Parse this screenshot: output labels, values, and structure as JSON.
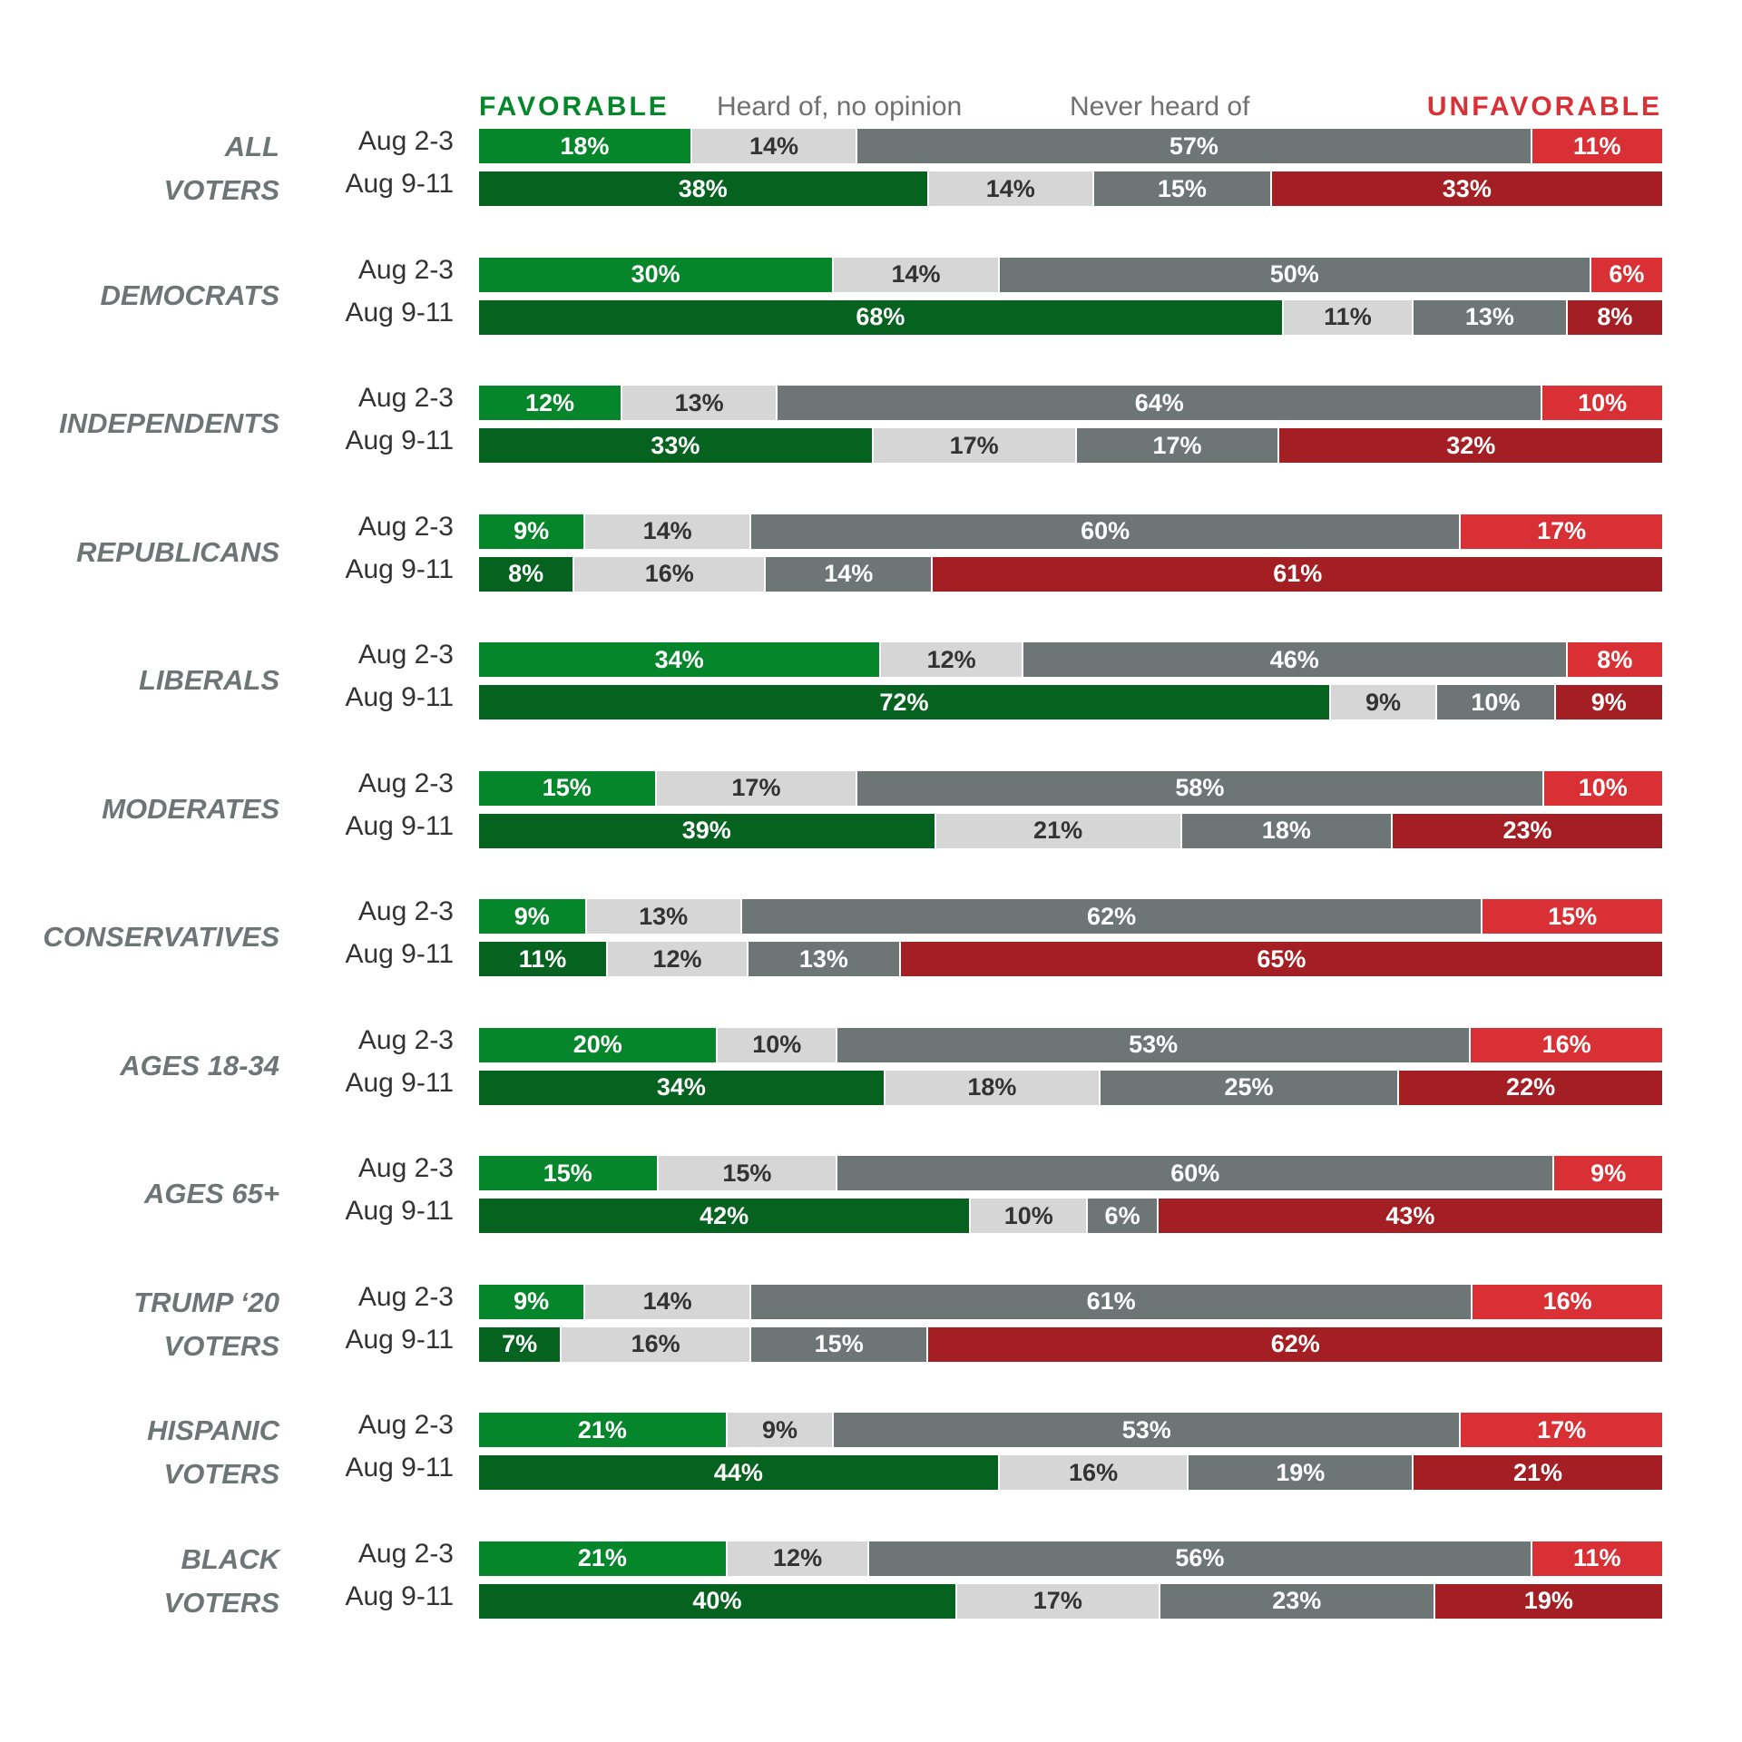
{
  "chart_data": {
    "type": "bar",
    "orientation": "horizontal",
    "stacked": true,
    "xlim": [
      0,
      100
    ],
    "legend_placement": "top",
    "series": [
      {
        "name": "FAVORABLE",
        "key": "favorable"
      },
      {
        "name": "Heard of, no opinion",
        "key": "no_opinion"
      },
      {
        "name": "Never heard of",
        "key": "never_heard"
      },
      {
        "name": "UNFAVORABLE",
        "key": "unfavorable"
      }
    ],
    "colors": {
      "favorable_1": "#06862a",
      "favorable_2": "#05631f",
      "no_opinion": "#d6d6d6",
      "never_heard": "#6e7575",
      "unfavorable_1": "#d93036",
      "unfavorable_2": "#a31f24",
      "legend_favorable": "#06862a",
      "legend_unfavorable": "#d93036",
      "legend_muted": "#707070"
    },
    "groups": [
      {
        "label": "ALL\nVOTERS",
        "rows": [
          {
            "date": "Aug 2-3",
            "values": [
              18,
              14,
              57,
              11
            ],
            "labels": [
              "18%",
              "14%",
              "57%",
              "11%"
            ]
          },
          {
            "date": "Aug 9-11",
            "values": [
              38,
              14,
              15,
              33
            ],
            "labels": [
              "38%",
              "14%",
              "15%",
              "33%"
            ]
          }
        ]
      },
      {
        "label": "DEMOCRATS",
        "rows": [
          {
            "date": "Aug 2-3",
            "values": [
              30,
              14,
              50,
              6
            ],
            "labels": [
              "30%",
              "14%",
              "50%",
              "6%"
            ]
          },
          {
            "date": "Aug 9-11",
            "values": [
              68,
              11,
              13,
              8
            ],
            "labels": [
              "68%",
              "11%",
              "13%",
              "8%"
            ]
          }
        ]
      },
      {
        "label": "INDEPENDENTS",
        "rows": [
          {
            "date": "Aug 2-3",
            "values": [
              12,
              13,
              64,
              10
            ],
            "labels": [
              "12%",
              "13%",
              "64%",
              "10%"
            ]
          },
          {
            "date": "Aug 9-11",
            "values": [
              33,
              17,
              17,
              32
            ],
            "labels": [
              "33%",
              "17%",
              "17%",
              "32%"
            ]
          }
        ]
      },
      {
        "label": "REPUBLICANS",
        "rows": [
          {
            "date": "Aug 2-3",
            "values": [
              9,
              14,
              60,
              17
            ],
            "labels": [
              "9%",
              "14%",
              "60%",
              "17%"
            ]
          },
          {
            "date": "Aug 9-11",
            "values": [
              8,
              16,
              14,
              61
            ],
            "labels": [
              "8%",
              "16%",
              "14%",
              "61%"
            ]
          }
        ]
      },
      {
        "label": "LIBERALS",
        "rows": [
          {
            "date": "Aug 2-3",
            "values": [
              34,
              12,
              46,
              8
            ],
            "labels": [
              "34%",
              "12%",
              "46%",
              "8%"
            ]
          },
          {
            "date": "Aug 9-11",
            "values": [
              72,
              9,
              10,
              9
            ],
            "labels": [
              "72%",
              "9%",
              "10%",
              "9%"
            ]
          }
        ]
      },
      {
        "label": "MODERATES",
        "rows": [
          {
            "date": "Aug 2-3",
            "values": [
              15,
              17,
              58,
              10
            ],
            "labels": [
              "15%",
              "17%",
              "58%",
              "10%"
            ]
          },
          {
            "date": "Aug 9-11",
            "values": [
              39,
              21,
              18,
              23
            ],
            "labels": [
              "39%",
              "21%",
              "18%",
              "23%"
            ]
          }
        ]
      },
      {
        "label": "CONSERVATIVES",
        "rows": [
          {
            "date": "Aug 2-3",
            "values": [
              9,
              13,
              62,
              15
            ],
            "labels": [
              "9%",
              "13%",
              "62%",
              "15%"
            ]
          },
          {
            "date": "Aug 9-11",
            "values": [
              11,
              12,
              13,
              65
            ],
            "labels": [
              "11%",
              "12%",
              "13%",
              "65%"
            ]
          }
        ]
      },
      {
        "label": "AGES 18-34",
        "rows": [
          {
            "date": "Aug 2-3",
            "values": [
              20,
              10,
              53,
              16
            ],
            "labels": [
              "20%",
              "10%",
              "53%",
              "16%"
            ]
          },
          {
            "date": "Aug 9-11",
            "values": [
              34,
              18,
              25,
              22
            ],
            "labels": [
              "34%",
              "18%",
              "25%",
              "22%"
            ]
          }
        ]
      },
      {
        "label": "AGES 65+",
        "rows": [
          {
            "date": "Aug 2-3",
            "values": [
              15,
              15,
              60,
              9
            ],
            "labels": [
              "15%",
              "15%",
              "60%",
              "9%"
            ]
          },
          {
            "date": "Aug 9-11",
            "values": [
              42,
              10,
              6,
              43
            ],
            "labels": [
              "42%",
              "10%",
              "6%",
              "43%"
            ]
          }
        ]
      },
      {
        "label": "TRUMP ‘20\nVOTERS",
        "rows": [
          {
            "date": "Aug 2-3",
            "values": [
              9,
              14,
              61,
              16
            ],
            "labels": [
              "9%",
              "14%",
              "61%",
              "16%"
            ]
          },
          {
            "date": "Aug 9-11",
            "values": [
              7,
              16,
              15,
              62
            ],
            "labels": [
              "7%",
              "16%",
              "15%",
              "62%"
            ]
          }
        ]
      },
      {
        "label": "HISPANIC\nVOTERS",
        "rows": [
          {
            "date": "Aug 2-3",
            "values": [
              21,
              9,
              53,
              17
            ],
            "labels": [
              "21%",
              "9%",
              "53%",
              "17%"
            ]
          },
          {
            "date": "Aug 9-11",
            "values": [
              44,
              16,
              19,
              21
            ],
            "labels": [
              "44%",
              "16%",
              "19%",
              "21%"
            ]
          }
        ]
      },
      {
        "label": "BLACK\nVOTERS",
        "rows": [
          {
            "date": "Aug 2-3",
            "values": [
              21,
              12,
              56,
              11
            ],
            "labels": [
              "21%",
              "12%",
              "56%",
              "11%"
            ]
          },
          {
            "date": "Aug 9-11",
            "values": [
              40,
              17,
              23,
              19
            ],
            "labels": [
              "40%",
              "17%",
              "23%",
              "19%"
            ]
          }
        ]
      }
    ]
  }
}
